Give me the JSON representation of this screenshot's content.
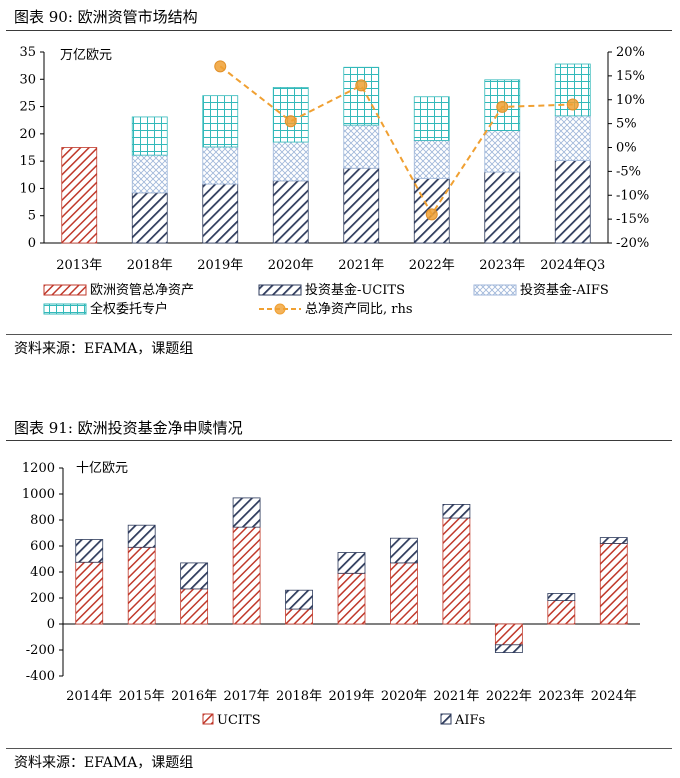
{
  "figure1": {
    "title": "图表 90: 欧洲资管市场结构",
    "source": "资料来源：EFAMA，课题组"
  },
  "figure2": {
    "title": "图表 91: 欧洲投资基金净申赎情况",
    "source": "资料来源：EFAMA，课题组"
  },
  "colors": {
    "red": "#c0392b",
    "navy": "#2e3b5c",
    "lightblue": "#9fb6d9",
    "teal": "#33b9ba",
    "orange": "#f0a032"
  },
  "chart_data": [
    {
      "type": "bar",
      "stacked": true,
      "title": "图表 90: 欧洲资管市场结构",
      "unit_label": "万亿欧元",
      "categories": [
        "2013年",
        "2018年",
        "2019年",
        "2020年",
        "2021年",
        "2022年",
        "2023年",
        "2024年Q3"
      ],
      "series": [
        {
          "name": "欧洲资管总净资产",
          "values": [
            17.5,
            null,
            null,
            null,
            null,
            null,
            null,
            null
          ]
        },
        {
          "name": "投资基金-UCITS",
          "values": [
            null,
            9.2,
            10.8,
            11.4,
            13.7,
            11.8,
            13.0,
            15.1
          ]
        },
        {
          "name": "投资基金-AIFS",
          "values": [
            null,
            6.9,
            6.8,
            7.1,
            7.9,
            7.0,
            7.6,
            8.2
          ]
        },
        {
          "name": "全权委托专户",
          "values": [
            null,
            7.0,
            9.4,
            10.0,
            10.6,
            8.0,
            9.3,
            9.5
          ]
        }
      ],
      "line": {
        "name": "总净资产同比, rhs",
        "values": [
          null,
          null,
          17.0,
          5.5,
          13.0,
          -14.0,
          8.5,
          9.0
        ]
      },
      "ylim": [
        0,
        35
      ],
      "yticks": [
        0,
        5,
        10,
        15,
        20,
        25,
        30,
        35
      ],
      "y2lim": [
        -20,
        20
      ],
      "y2ticks": [
        "-20%",
        "-15%",
        "-10%",
        "-5%",
        "0%",
        "5%",
        "10%",
        "15%",
        "20%"
      ],
      "legend": [
        "欧洲资管总净资产",
        "投资基金-UCITS",
        "投资基金-AIFS",
        "全权委托专户",
        "总净资产同比, rhs"
      ]
    },
    {
      "type": "bar",
      "stacked": true,
      "title": "图表 91: 欧洲投资基金净申赎情况",
      "unit_label": "十亿欧元",
      "categories": [
        "2014年",
        "2015年",
        "2016年",
        "2017年",
        "2018年",
        "2019年",
        "2020年",
        "2021年",
        "2022年",
        "2023年",
        "2024年"
      ],
      "series": [
        {
          "name": "UCITS",
          "values": [
            475,
            590,
            270,
            745,
            115,
            390,
            470,
            815,
            -160,
            180,
            620
          ]
        },
        {
          "name": "AIFs",
          "values": [
            175,
            170,
            200,
            225,
            145,
            160,
            190,
            105,
            -60,
            55,
            45
          ]
        }
      ],
      "ylim": [
        -400,
        1200
      ],
      "yticks": [
        -400,
        -200,
        0,
        200,
        400,
        600,
        800,
        1000,
        1200
      ],
      "legend": [
        "UCITS",
        "AIFs"
      ]
    }
  ]
}
